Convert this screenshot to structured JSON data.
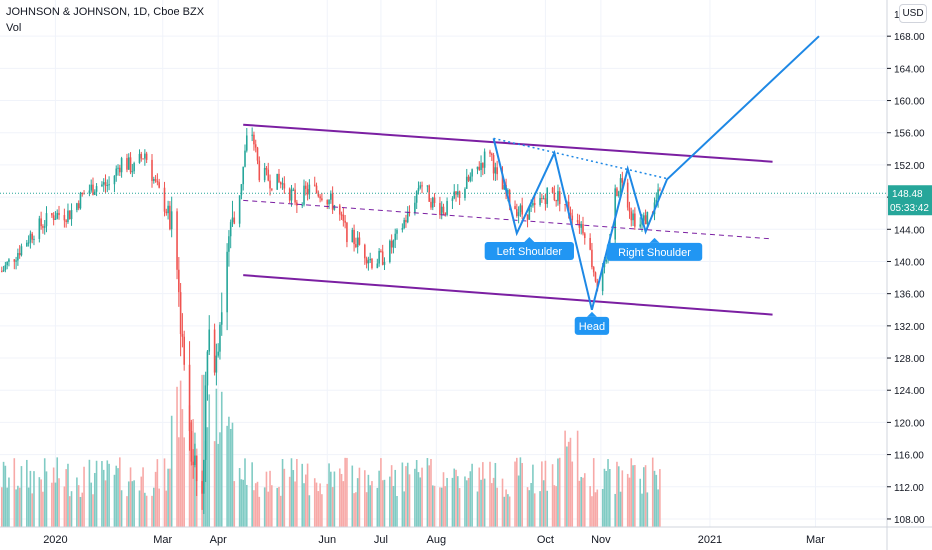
{
  "header": {
    "title": "JOHNSON & JOHNSON, 1D, Cboe BZX",
    "volume_label": "Vol",
    "currency_button": "USD"
  },
  "price_axis": {
    "ticks": [
      "168.00",
      "164.00",
      "160.00",
      "156.00",
      "152.00",
      "148.00",
      "144.00",
      "140.00",
      "136.00",
      "132.00",
      "128.00",
      "124.00",
      "120.00",
      "116.00",
      "112.00",
      "108.00"
    ],
    "top_partial": "1",
    "last_price": "148.48",
    "countdown": "05:33:42"
  },
  "time_axis": {
    "labels": [
      "2020",
      "Mar",
      "Apr",
      "Jun",
      "Jul",
      "Aug",
      "Oct",
      "Nov",
      "2021",
      "Mar"
    ]
  },
  "annotations": {
    "left_shoulder": "Left Shoulder",
    "head": "Head",
    "right_shoulder": "Right Shoulder"
  },
  "colors": {
    "up": "#26a69a",
    "down": "#ef5350",
    "vol_up": "#80cbc4",
    "vol_down": "#f7a9a7",
    "channel": "#7b1fa2",
    "pattern": "#1e88e5",
    "label_bg": "#2196f3",
    "price_tag": "#26a69a"
  },
  "chart_data": {
    "type": "candlestick",
    "symbol": "JOHNSON & JOHNSON",
    "interval": "1D",
    "ylim": [
      107,
      172
    ],
    "x_domain": [
      "2019-12-01",
      "2021-04-10"
    ],
    "close_path": [
      [
        "2019-12-02",
        138.8
      ],
      [
        "2019-12-12",
        141.5
      ],
      [
        "2019-12-20",
        143.8
      ],
      [
        "2019-12-31",
        145.8
      ],
      [
        "2020-01-09",
        146.0
      ],
      [
        "2020-01-17",
        148.5
      ],
      [
        "2020-01-24",
        149.5
      ],
      [
        "2020-01-31",
        149.5
      ],
      [
        "2020-02-07",
        152.5
      ],
      [
        "2020-02-14",
        151.5
      ],
      [
        "2020-02-20",
        153.5
      ],
      [
        "2020-02-26",
        149.5
      ],
      [
        "2020-03-04",
        146.0
      ],
      [
        "2020-03-09",
        138.5
      ],
      [
        "2020-03-12",
        131.0
      ],
      [
        "2020-03-16",
        120.0
      ],
      [
        "2020-03-20",
        113.0
      ],
      [
        "2020-03-23",
        112.5
      ],
      [
        "2020-03-26",
        128.0
      ],
      [
        "2020-03-31",
        130.0
      ],
      [
        "2020-04-06",
        140.0
      ],
      [
        "2020-04-09",
        143.5
      ],
      [
        "2020-04-14",
        150.0
      ],
      [
        "2020-04-17",
        155.0
      ],
      [
        "2020-04-20",
        156.0
      ],
      [
        "2020-04-24",
        151.0
      ],
      [
        "2020-05-01",
        150.0
      ],
      [
        "2020-05-08",
        149.5
      ],
      [
        "2020-05-15",
        147.5
      ],
      [
        "2020-05-22",
        149.0
      ],
      [
        "2020-05-29",
        148.5
      ],
      [
        "2020-06-05",
        147.0
      ],
      [
        "2020-06-12",
        143.5
      ],
      [
        "2020-06-19",
        142.0
      ],
      [
        "2020-06-26",
        140.0
      ],
      [
        "2020-07-02",
        140.5
      ],
      [
        "2020-07-09",
        142.5
      ],
      [
        "2020-07-14",
        145.0
      ],
      [
        "2020-07-17",
        146.0
      ],
      [
        "2020-07-23",
        150.0
      ],
      [
        "2020-07-31",
        147.0
      ],
      [
        "2020-08-07",
        146.5
      ],
      [
        "2020-08-14",
        148.5
      ],
      [
        "2020-08-21",
        150.5
      ],
      [
        "2020-08-31",
        154.0
      ],
      [
        "2020-09-04",
        150.0
      ],
      [
        "2020-09-11",
        147.5
      ],
      [
        "2020-09-18",
        146.0
      ],
      [
        "2020-09-25",
        146.5
      ],
      [
        "2020-10-02",
        148.5
      ],
      [
        "2020-10-09",
        148.0
      ],
      [
        "2020-10-16",
        146.0
      ],
      [
        "2020-10-23",
        144.0
      ],
      [
        "2020-10-30",
        137.0
      ],
      [
        "2020-11-04",
        139.5
      ],
      [
        "2020-11-09",
        148.5
      ],
      [
        "2020-11-13",
        150.5
      ],
      [
        "2020-11-18",
        146.0
      ],
      [
        "2020-11-23",
        144.5
      ],
      [
        "2020-11-30",
        146.5
      ],
      [
        "2020-12-04",
        148.5
      ]
    ],
    "last_price": 148.48,
    "channel_upper": [
      [
        "2020-04-15",
        157.0
      ],
      [
        "2021-02-05",
        152.4
      ]
    ],
    "channel_lower": [
      [
        "2020-04-15",
        138.3
      ],
      [
        "2021-02-05",
        133.4
      ]
    ],
    "channel_mid": [
      [
        "2020-04-15",
        147.6
      ],
      [
        "2021-02-05",
        142.8
      ]
    ],
    "neckline": [
      [
        "2020-09-02",
        155.3
      ],
      [
        "2020-12-08",
        150.3
      ]
    ],
    "pattern_path": [
      [
        "2020-09-02",
        155.3
      ],
      [
        "2020-09-15",
        143.5
      ],
      [
        "2020-10-06",
        153.5
      ],
      [
        "2020-10-27",
        134.0
      ],
      [
        "2020-11-16",
        151.5
      ],
      [
        "2020-11-26",
        143.7
      ],
      [
        "2020-12-08",
        150.2
      ],
      [
        "2021-03-03",
        168.0
      ]
    ],
    "labels": [
      {
        "text": "Left Shoulder",
        "date": "2020-09-22",
        "price": 141.3
      },
      {
        "text": "Head",
        "date": "2020-10-27",
        "price": 132.0
      },
      {
        "text": "Right Shoulder",
        "date": "2020-12-01",
        "price": 141.2
      }
    ]
  }
}
